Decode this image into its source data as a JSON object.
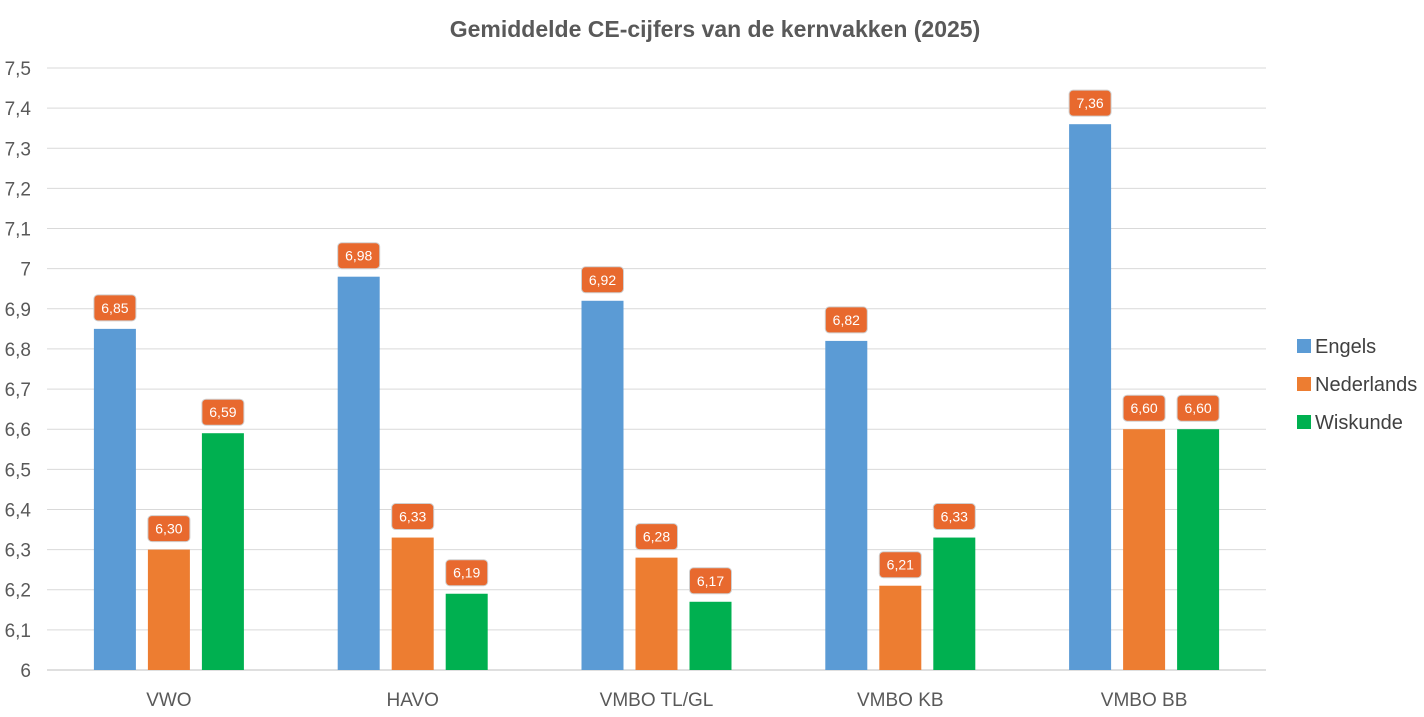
{
  "chart_data": {
    "type": "bar",
    "title": "Gemiddelde CE-cijfers van de kernvakken (2025)",
    "xlabel": "",
    "ylabel": "",
    "categories": [
      "VWO",
      "HAVO",
      "VMBO TL/GL",
      "VMBO KB",
      "VMBO BB"
    ],
    "series": [
      {
        "name": "Engels",
        "color": "#5b9bd5",
        "values": [
          6.85,
          6.98,
          6.92,
          6.82,
          7.36
        ],
        "labels": [
          "6,85",
          "6,98",
          "6,92",
          "6,82",
          "7,36"
        ]
      },
      {
        "name": "Nederlands",
        "color": "#ed7d31",
        "values": [
          6.3,
          6.33,
          6.28,
          6.21,
          6.6
        ],
        "labels": [
          "6,30",
          "6,33",
          "6,28",
          "6,21",
          "6,60"
        ]
      },
      {
        "name": "Wiskunde",
        "color": "#00b050",
        "values": [
          6.59,
          6.19,
          6.17,
          6.33,
          6.6
        ],
        "labels": [
          "6,59",
          "6,19",
          "6,17",
          "6,33",
          "6,60"
        ]
      }
    ],
    "ylim": [
      6,
      7.5
    ],
    "yticks": [
      6,
      6.1,
      6.2,
      6.3,
      6.4,
      6.5,
      6.6,
      6.7,
      6.8,
      6.9,
      7,
      7.1,
      7.2,
      7.3,
      7.4,
      7.5
    ],
    "ytick_labels": [
      "6",
      "6,1",
      "6,2",
      "6,3",
      "6,4",
      "6,5",
      "6,6",
      "6,7",
      "6,8",
      "6,9",
      "7",
      "7,1",
      "7,2",
      "7,3",
      "7,4",
      "7,5"
    ],
    "data_label_bg": "#e8692e",
    "grid": true,
    "legend_position": "right"
  }
}
